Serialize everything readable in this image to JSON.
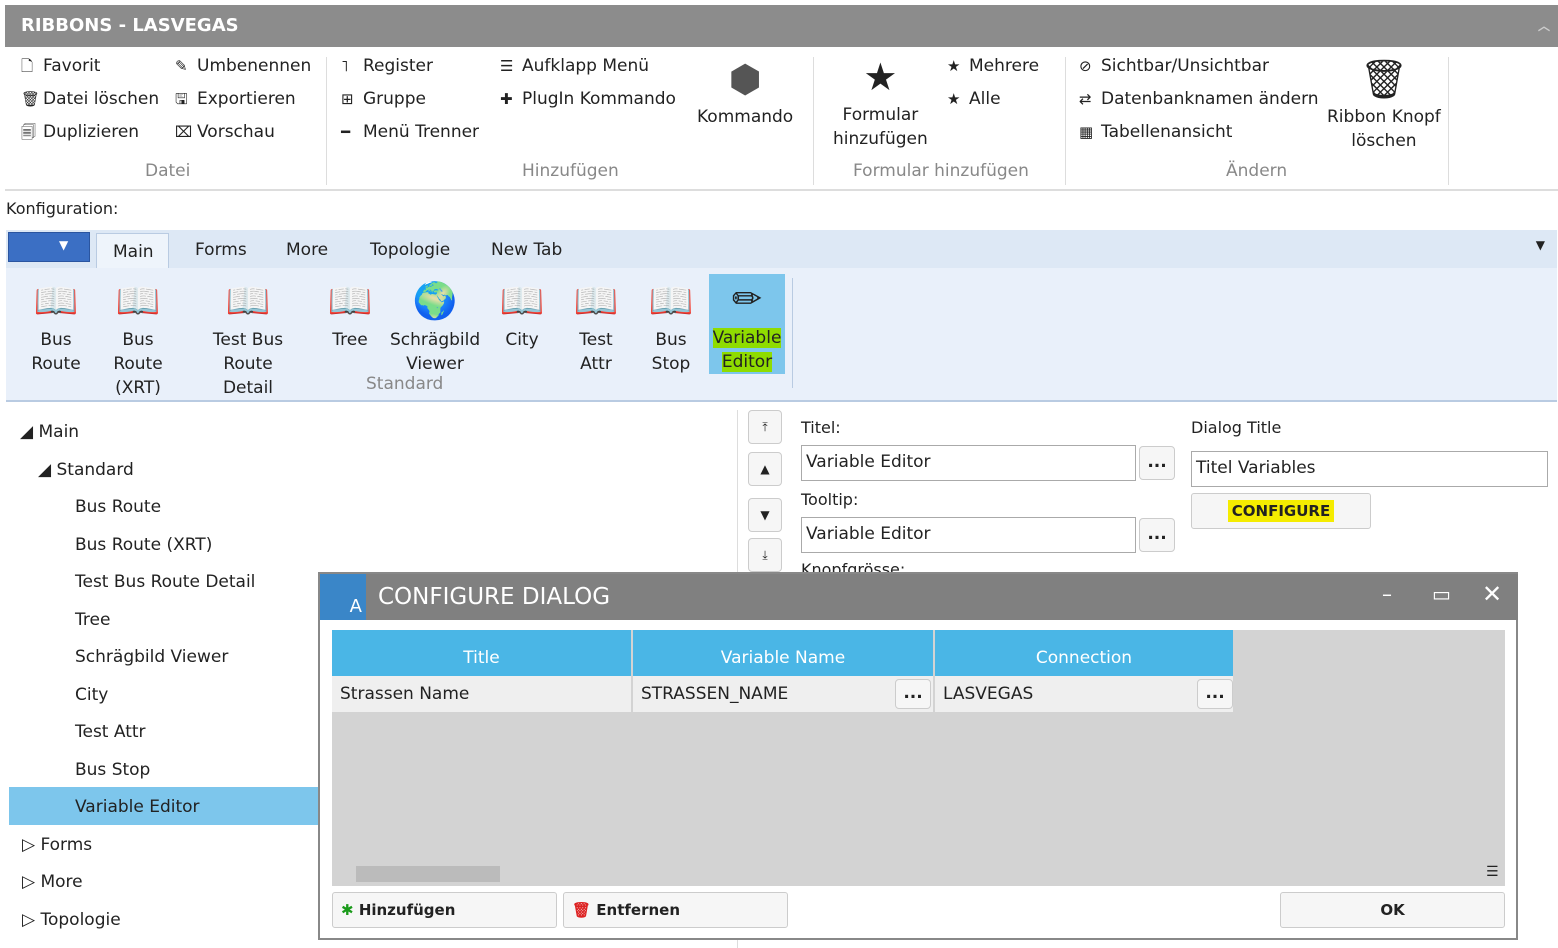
{
  "window": {
    "title": "RIBBONS - LASVEGAS",
    "collapse_icon": "chevron-up-icon"
  },
  "ribbon": {
    "datei": {
      "label": "Datei",
      "items": [
        {
          "label": "Favorit",
          "icon": "favorite-file-icon"
        },
        {
          "label": "Datei löschen",
          "icon": "trash-icon"
        },
        {
          "label": "Duplizieren",
          "icon": "duplicate-icon"
        },
        {
          "label": "Umbenennen",
          "icon": "rename-icon"
        },
        {
          "label": "Exportieren",
          "icon": "export-icon"
        },
        {
          "label": "Vorschau",
          "icon": "preview-icon"
        }
      ]
    },
    "hinzufuegen": {
      "label": "Hinzufügen",
      "items": [
        {
          "label": "Register",
          "icon": "register-icon"
        },
        {
          "label": "Gruppe",
          "icon": "group-icon"
        },
        {
          "label": "Menü Trenner",
          "icon": "separator-icon"
        },
        {
          "label": "Aufklapp Menü",
          "icon": "dropdown-menu-icon"
        },
        {
          "label": "PlugIn Kommando",
          "icon": "puzzle-icon"
        }
      ],
      "big": {
        "label": "Kommando",
        "icon": "cube-icon"
      }
    },
    "formular": {
      "label": "Formular hinzufügen",
      "big": {
        "label1": "Formular",
        "label2": "hinzufügen",
        "icon": "star-add-icon"
      },
      "items": [
        {
          "label": "Mehrere",
          "icon": "star-icon"
        },
        {
          "label": "Alle",
          "icon": "star-icon"
        }
      ]
    },
    "aendern": {
      "label": "Ändern",
      "items": [
        {
          "label": "Sichtbar/Unsichtbar",
          "icon": "eye-off-icon"
        },
        {
          "label": "Datenbanknamen ändern",
          "icon": "swap-icon"
        },
        {
          "label": "Tabellenansicht",
          "icon": "table-icon"
        }
      ],
      "big": {
        "label1": "Ribbon Knopf",
        "label2": "löschen",
        "icon": "trash-icon"
      }
    }
  },
  "config": {
    "label": "Konfiguration:"
  },
  "tabs": [
    {
      "label": "Main"
    },
    {
      "label": "Forms"
    },
    {
      "label": "More"
    },
    {
      "label": "Topologie"
    },
    {
      "label": "New Tab"
    }
  ],
  "preview": {
    "group_label": "Standard",
    "buttons": [
      {
        "l1": "Bus",
        "l2": "Route"
      },
      {
        "l1": "Bus Route",
        "l2": "(XRT)"
      },
      {
        "l1": "Test Bus Route",
        "l2": "Detail"
      },
      {
        "l1": "Tree",
        "l2": ""
      },
      {
        "l1": "Schrägbild",
        "l2": "Viewer"
      },
      {
        "l1": "City",
        "l2": ""
      },
      {
        "l1": "Test",
        "l2": "Attr"
      },
      {
        "l1": "Bus",
        "l2": "Stop"
      },
      {
        "l1": "Variable",
        "l2": "Editor"
      }
    ]
  },
  "tree": {
    "root": "Main",
    "group": "Standard",
    "items": [
      "Bus Route",
      "Bus Route (XRT)",
      "Test Bus Route Detail",
      "Tree",
      "Schrägbild Viewer",
      "City",
      "Test Attr",
      "Bus Stop",
      "Variable Editor"
    ],
    "others": [
      "Forms",
      "More",
      "Topologie"
    ],
    "selected": "Variable Editor"
  },
  "props": {
    "titel_label": "Titel:",
    "titel_value": "Variable Editor",
    "tooltip_label": "Tooltip:",
    "tooltip_value": "Variable Editor",
    "size_label": "Knopfgrösse:",
    "dialog_title_label": "Dialog Title",
    "dialog_title_value": "Titel Variables",
    "configure": "CONFIGURE",
    "dots": "..."
  },
  "dialog": {
    "title": "CONFIGURE DIALOG",
    "columns": [
      "Title",
      "Variable Name",
      "Connection"
    ],
    "rows": [
      [
        "Strassen Name",
        "STRASSEN_NAME",
        "LASVEGAS"
      ]
    ],
    "add": "Hinzufügen",
    "remove": "Entfernen",
    "ok": "OK"
  },
  "colors": {
    "header": "#4ab6e6",
    "selected": "#7dc6ec",
    "highlight": "#f5ec00"
  }
}
